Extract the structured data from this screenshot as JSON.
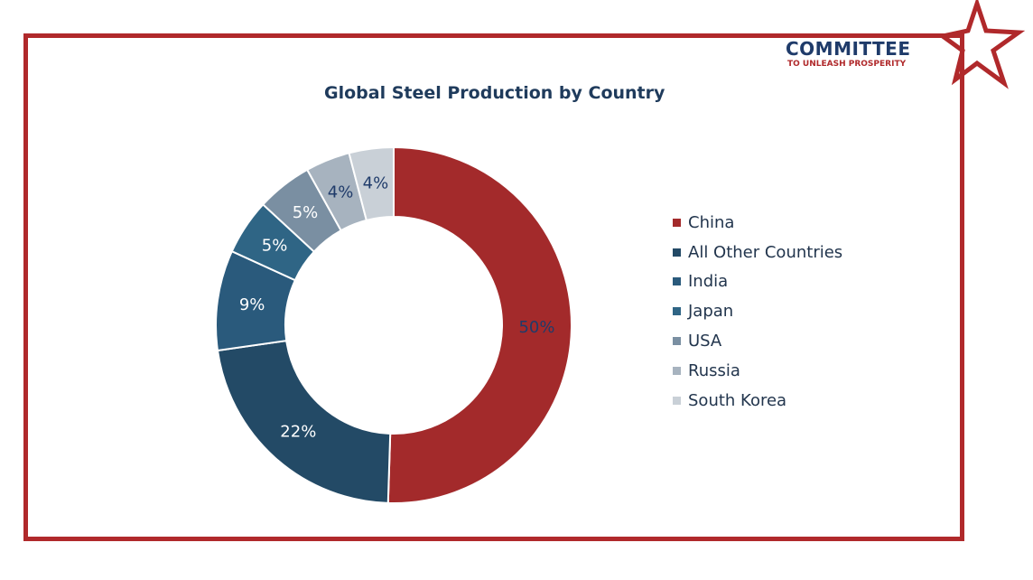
{
  "logo": {
    "name": "COMMITTEE",
    "tagline": "TO UNLEASH PROSPERITY"
  },
  "chart_data": {
    "type": "pie",
    "title": "Global Steel Production by Country",
    "series": [
      {
        "name": "China",
        "value": 50,
        "label": "50%",
        "color": "#a32a2b",
        "label_color": "#1f3b6a"
      },
      {
        "name": "All Other Countries",
        "value": 22,
        "label": "22%",
        "color": "#234a66",
        "label_color": "#ffffff"
      },
      {
        "name": "India",
        "value": 9,
        "label": "9%",
        "color": "#2a5a7c",
        "label_color": "#ffffff"
      },
      {
        "name": "Japan",
        "value": 5,
        "label": "5%",
        "color": "#2f6585",
        "label_color": "#ffffff"
      },
      {
        "name": "USA",
        "value": 5,
        "label": "5%",
        "color": "#7a8fa2",
        "label_color": "#ffffff"
      },
      {
        "name": "Russia",
        "value": 4,
        "label": "4%",
        "color": "#a7b3bf",
        "label_color": "#1f3b6a"
      },
      {
        "name": "South Korea",
        "value": 4,
        "label": "4%",
        "color": "#c9d0d7",
        "label_color": "#1f3b6a"
      }
    ],
    "donut": true,
    "legend_position": "right",
    "colors": {
      "frame": "#b0292b",
      "title": "#1f3b5c"
    }
  }
}
